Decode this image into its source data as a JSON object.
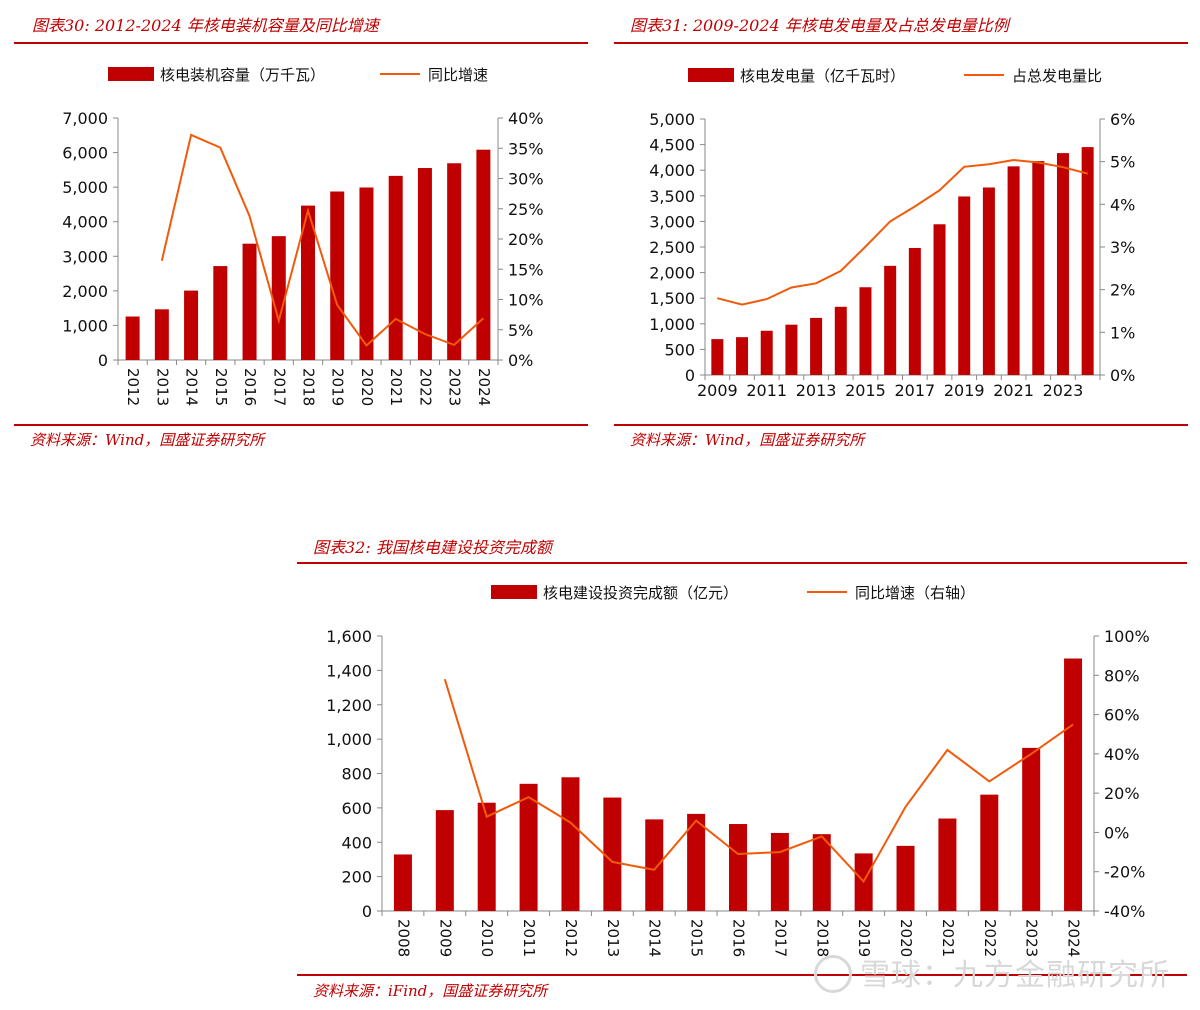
{
  "colors": {
    "accent": "#c00000",
    "bar": "#c00000",
    "line": "#f05a0a",
    "axis": "#888888"
  },
  "source_watermark": "雪球：九方金融研究所",
  "chart_data": [
    {
      "id": "chart30",
      "type": "bar",
      "title": "图表30:  2012-2024 年核电装机容量及同比增速",
      "source": "资料来源：Wind，国盛证券研究所",
      "categories": [
        "2012",
        "2013",
        "2014",
        "2015",
        "2016",
        "2017",
        "2018",
        "2019",
        "2020",
        "2021",
        "2022",
        "2023",
        "2024"
      ],
      "series": [
        {
          "name": "核电装机容量（万千瓦）",
          "kind": "bar",
          "axis": "left",
          "values": [
            1257,
            1466,
            2008,
            2717,
            3364,
            3582,
            4466,
            4874,
            4989,
            5326,
            5553,
            5691,
            6083
          ]
        },
        {
          "name": "同比增速",
          "kind": "line",
          "axis": "right",
          "values": [
            null,
            16.4,
            37.2,
            35.1,
            23.8,
            6.5,
            24.7,
            9.1,
            2.4,
            6.8,
            4.3,
            2.5,
            6.9
          ]
        }
      ],
      "ylim_left": [
        0,
        7000
      ],
      "yticks_left": [
        0,
        1000,
        2000,
        3000,
        4000,
        5000,
        6000,
        7000
      ],
      "ytick_labels_left": [
        "0",
        "1,000",
        "2,000",
        "3,000",
        "4,000",
        "5,000",
        "6,000",
        "7,000"
      ],
      "ylim_right": [
        0,
        40
      ],
      "yticks_right": [
        0,
        5,
        10,
        15,
        20,
        25,
        30,
        35,
        40
      ],
      "ytick_labels_right": [
        "0%",
        "5%",
        "10%",
        "15%",
        "20%",
        "25%",
        "30%",
        "35%",
        "40%"
      ],
      "xtick_rotate": true,
      "xticks_every": 1
    },
    {
      "id": "chart31",
      "type": "bar",
      "title": "图表31:  2009-2024 年核电发电量及占总发电量比例",
      "source": "资料来源：Wind，国盛证券研究所",
      "categories": [
        "2009",
        "2010",
        "2011",
        "2012",
        "2013",
        "2014",
        "2015",
        "2016",
        "2017",
        "2018",
        "2019",
        "2020",
        "2021",
        "2022",
        "2023",
        "2024"
      ],
      "series": [
        {
          "name": "核电发电量（亿千瓦时）",
          "kind": "bar",
          "axis": "left",
          "values": [
            701,
            739,
            864,
            983,
            1115,
            1332,
            1714,
            2132,
            2481,
            2944,
            3487,
            3662,
            4075,
            4178,
            4334,
            4451
          ]
        },
        {
          "name": "占总发电量比",
          "kind": "line",
          "axis": "right",
          "values": [
            1.8,
            1.65,
            1.78,
            2.05,
            2.15,
            2.44,
            3.01,
            3.6,
            3.95,
            4.33,
            4.88,
            4.94,
            5.04,
            4.98,
            4.87,
            4.72
          ]
        }
      ],
      "ylim_left": [
        0,
        5000
      ],
      "yticks_left": [
        0,
        500,
        1000,
        1500,
        2000,
        2500,
        3000,
        3500,
        4000,
        4500,
        5000
      ],
      "ytick_labels_left": [
        "0",
        "500",
        "1,000",
        "1,500",
        "2,000",
        "2,500",
        "3,000",
        "3,500",
        "4,000",
        "4,500",
        "5,000"
      ],
      "ylim_right": [
        0,
        6
      ],
      "yticks_right": [
        0,
        1,
        2,
        3,
        4,
        5,
        6
      ],
      "ytick_labels_right": [
        "0%",
        "1%",
        "2%",
        "3%",
        "4%",
        "5%",
        "6%"
      ],
      "xtick_rotate": false,
      "xticks_every": 2
    },
    {
      "id": "chart32",
      "type": "bar",
      "title": "图表32:  我国核电建设投资完成额",
      "source": "资料来源：iFind，国盛证券研究所",
      "categories": [
        "2008",
        "2009",
        "2010",
        "2011",
        "2012",
        "2013",
        "2014",
        "2015",
        "2016",
        "2017",
        "2018",
        "2019",
        "2020",
        "2021",
        "2022",
        "2023",
        "2024"
      ],
      "series": [
        {
          "name": "核电建设投资完成额（亿元）",
          "kind": "bar",
          "axis": "left",
          "values": [
            329,
            587,
            630,
            740,
            778,
            660,
            533,
            565,
            506,
            454,
            447,
            335,
            379,
            538,
            677,
            949,
            1469
          ]
        },
        {
          "name": "同比增速（右轴）",
          "kind": "line",
          "axis": "right",
          "values": [
            null,
            78,
            8,
            18,
            5,
            -15,
            -19,
            6,
            -11,
            -10,
            -2,
            -25,
            13,
            42,
            26,
            40,
            55
          ]
        }
      ],
      "ylim_left": [
        0,
        1600
      ],
      "yticks_left": [
        0,
        200,
        400,
        600,
        800,
        1000,
        1200,
        1400,
        1600
      ],
      "ytick_labels_left": [
        "0",
        "200",
        "400",
        "600",
        "800",
        "1,000",
        "1,200",
        "1,400",
        "1,600"
      ],
      "ylim_right": [
        -40,
        100
      ],
      "yticks_right": [
        -40,
        -20,
        0,
        20,
        40,
        60,
        80,
        100
      ],
      "ytick_labels_right": [
        "-40%",
        "-20%",
        "0%",
        "20%",
        "40%",
        "60%",
        "80%",
        "100%"
      ],
      "xtick_rotate": true,
      "xticks_every": 1
    }
  ]
}
